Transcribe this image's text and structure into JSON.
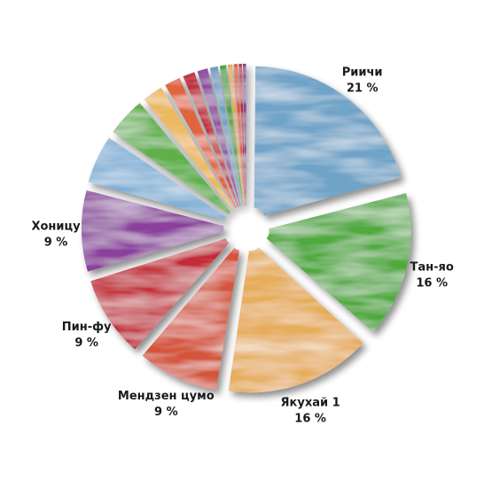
{
  "chart_data": {
    "type": "pie",
    "title": "",
    "start_angle_deg": 0,
    "direction": "clockwise",
    "slices": [
      {
        "label": "Риичи",
        "value": 21,
        "value_label": "21 %",
        "color": "#6fa3c8",
        "show_label": true
      },
      {
        "label": "Тан-яо",
        "value": 16,
        "value_label": "16 %",
        "color": "#4faa3c",
        "show_label": true
      },
      {
        "label": "Якухай 1",
        "value": 16,
        "value_label": "16 %",
        "color": "#e6ad5a",
        "show_label": true
      },
      {
        "label": "Мендзен цумо",
        "value": 9,
        "value_label": "9 %",
        "color": "#d4553a",
        "show_label": true
      },
      {
        "label": "Пин-фу",
        "value": 9,
        "value_label": "9 %",
        "color": "#c42b3a",
        "show_label": true
      },
      {
        "label": "Хоницу",
        "value": 9,
        "value_label": "9 %",
        "color": "#8c3f9e",
        "show_label": true
      },
      {
        "label": "",
        "value": 5.5,
        "value_label": "",
        "color": "#7fb0d6",
        "show_label": false
      },
      {
        "label": "",
        "value": 4.5,
        "value_label": "",
        "color": "#5fb04a",
        "show_label": false
      },
      {
        "label": "",
        "value": 2.5,
        "value_label": "",
        "color": "#ecb960",
        "show_label": false
      },
      {
        "label": "",
        "value": 2,
        "value_label": "",
        "color": "#e0653e",
        "show_label": false
      },
      {
        "label": "",
        "value": 1.5,
        "value_label": "",
        "color": "#c03040",
        "show_label": false
      },
      {
        "label": "",
        "value": 1.3,
        "value_label": "",
        "color": "#8a45a0",
        "show_label": false
      },
      {
        "label": "",
        "value": 1,
        "value_label": "",
        "color": "#6e9fc4",
        "show_label": false
      },
      {
        "label": "",
        "value": 0.8,
        "value_label": "",
        "color": "#4fa43d",
        "show_label": false
      },
      {
        "label": "",
        "value": 0.6,
        "value_label": "",
        "color": "#e2a553",
        "show_label": false
      },
      {
        "label": "",
        "value": 0.5,
        "value_label": "",
        "color": "#d6543c",
        "show_label": false
      },
      {
        "label": "",
        "value": 0.4,
        "value_label": "",
        "color": "#b92c3c",
        "show_label": false
      },
      {
        "label": "",
        "value": 0.4,
        "value_label": "",
        "color": "#84409b",
        "show_label": false
      }
    ]
  }
}
